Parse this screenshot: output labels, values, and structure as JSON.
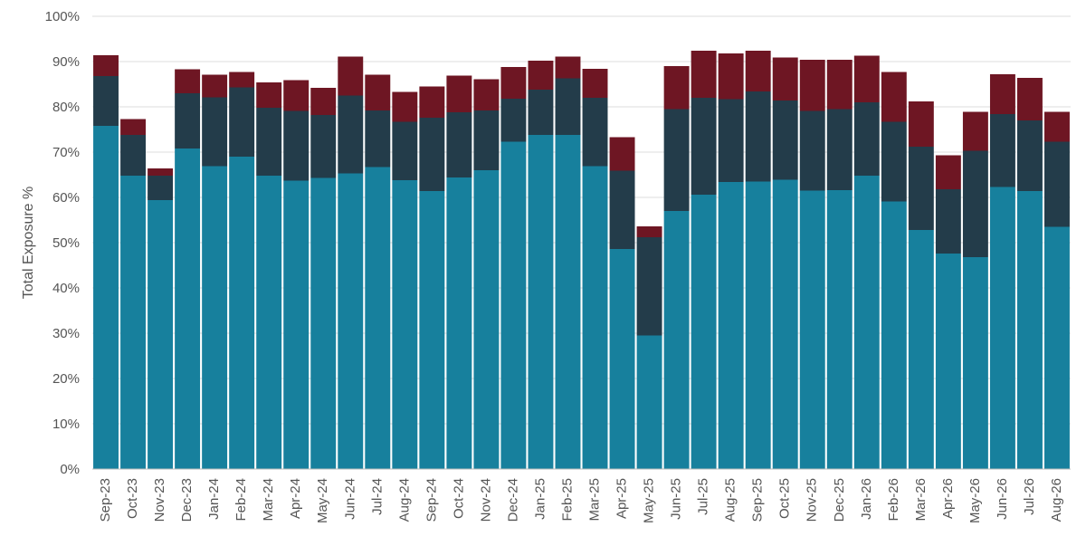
{
  "chart_data": {
    "type": "bar",
    "stacked": true,
    "title": "",
    "xlabel": "",
    "ylabel": "Total Exposure %",
    "ylim": [
      0,
      100
    ],
    "yticks": [
      "0%",
      "10%",
      "20%",
      "30%",
      "40%",
      "50%",
      "60%",
      "70%",
      "80%",
      "90%",
      "100%"
    ],
    "grid": "horizontal",
    "legend": "none",
    "categories": [
      "Sep-23",
      "Oct-23",
      "Nov-23",
      "Dec-23",
      "Jan-24",
      "Feb-24",
      "Mar-24",
      "Apr-24",
      "May-24",
      "Jun-24",
      "Jul-24",
      "Aug-24",
      "Sep-24",
      "Oct-24",
      "Nov-24",
      "Dec-24",
      "Jan-25",
      "Feb-25",
      "Mar-25",
      "Apr-25",
      "May-25",
      "Jun-25",
      "Jul-25",
      "Aug-25",
      "Sep-25",
      "Oct-25",
      "Nov-25",
      "Dec-25",
      "Jan-26",
      "Feb-26",
      "Mar-26",
      "Apr-26",
      "May-26",
      "Jun-26",
      "Jul-26",
      "Aug-26"
    ],
    "series": [
      {
        "color": "#17809d",
        "values": [
          75.8,
          64.8,
          59.4,
          70.8,
          66.9,
          69.0,
          64.8,
          63.7,
          64.3,
          65.3,
          66.7,
          63.8,
          61.4,
          64.4,
          66.0,
          72.3,
          73.8,
          73.8,
          66.9,
          48.6,
          29.5,
          57.0,
          60.6,
          63.4,
          63.5,
          63.9,
          61.5,
          61.6,
          64.8,
          59.1,
          52.8,
          47.6,
          46.8,
          62.3,
          61.4,
          53.5
        ]
      },
      {
        "color": "#233c4a",
        "values": [
          11.0,
          9.0,
          5.4,
          12.2,
          15.2,
          15.3,
          15.0,
          15.4,
          13.9,
          17.2,
          12.5,
          12.9,
          16.2,
          14.4,
          13.2,
          9.5,
          10.0,
          12.5,
          15.1,
          17.3,
          21.7,
          22.5,
          21.4,
          18.3,
          19.9,
          17.5,
          17.6,
          17.9,
          16.2,
          17.6,
          18.4,
          14.2,
          23.5,
          16.1,
          15.6,
          18.8
        ]
      },
      {
        "color": "#6e1623",
        "values": [
          4.6,
          3.5,
          1.6,
          5.3,
          5.0,
          3.4,
          5.6,
          6.8,
          6.0,
          8.6,
          7.9,
          6.6,
          6.9,
          8.1,
          6.9,
          7.0,
          6.4,
          4.8,
          6.4,
          7.4,
          2.4,
          9.5,
          10.4,
          10.1,
          9.0,
          9.5,
          11.3,
          10.9,
          10.3,
          11.0,
          10.0,
          7.5,
          8.6,
          8.8,
          9.4,
          6.6
        ]
      }
    ]
  }
}
